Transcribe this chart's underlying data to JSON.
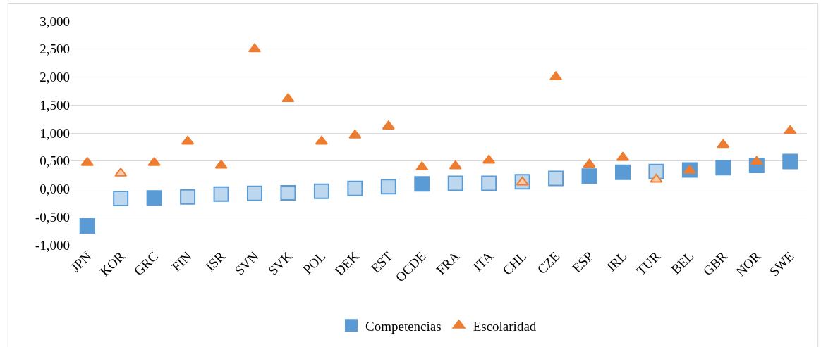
{
  "chart_data": {
    "type": "scatter",
    "categories": [
      "JPN",
      "KOR",
      "GRC",
      "FIN",
      "ISR",
      "SVN",
      "SVK",
      "POL",
      "DEK",
      "EST",
      "OCDE",
      "FRA",
      "ITA",
      "CHL",
      "CZE",
      "ESP",
      "IRL",
      "TUR",
      "BEL",
      "GBR",
      "NOR",
      "SWE"
    ],
    "series": [
      {
        "name": "Competencias",
        "color": "#5b9bd5",
        "marker": "square",
        "values": [
          -0.66,
          -0.17,
          -0.16,
          -0.14,
          -0.09,
          -0.08,
          -0.07,
          -0.04,
          0.01,
          0.04,
          0.09,
          0.1,
          0.1,
          0.13,
          0.19,
          0.23,
          0.3,
          0.31,
          0.34,
          0.38,
          0.42,
          0.49
        ],
        "colors": [
          "#5b9bd5",
          "#bdd7ee",
          "#5b9bd5",
          "#bdd7ee",
          "#bdd7ee",
          "#bdd7ee",
          "#bdd7ee",
          "#bdd7ee",
          "#bdd7ee",
          "#bdd7ee",
          "#5b9bd5",
          "#bdd7ee",
          "#bdd7ee",
          "#bdd7ee",
          "#bdd7ee",
          "#5b9bd5",
          "#5b9bd5",
          "#bdd7ee",
          "#5b9bd5",
          "#5b9bd5",
          "#5b9bd5",
          "#5b9bd5"
        ]
      },
      {
        "name": "Escolaridad",
        "color": "#ed7d31",
        "marker": "triangle",
        "values": [
          0.47,
          0.28,
          0.47,
          0.85,
          0.42,
          2.5,
          1.61,
          0.85,
          0.96,
          1.12,
          0.39,
          0.41,
          0.51,
          0.12,
          2.0,
          0.44,
          0.56,
          0.17,
          0.33,
          0.79,
          0.49,
          1.04
        ],
        "colors": [
          "#ed7d31",
          "#f8cbad",
          "#ed7d31",
          "#ed7d31",
          "#ed7d31",
          "#ed7d31",
          "#ed7d31",
          "#ed7d31",
          "#ed7d31",
          "#ed7d31",
          "#ed7d31",
          "#ed7d31",
          "#ed7d31",
          "#f8cbad",
          "#ed7d31",
          "#ed7d31",
          "#ed7d31",
          "#f8cbad",
          "#ed7d31",
          "#ed7d31",
          "#ed7d31",
          "#ed7d31"
        ]
      }
    ],
    "ylim": [
      -1.0,
      3.0
    ],
    "yticks": [
      {
        "value": -1.0,
        "label": "-1,000"
      },
      {
        "value": -0.5,
        "label": "-0,500"
      },
      {
        "value": 0,
        "label": "0,000"
      },
      {
        "value": 0.5,
        "label": "0,500"
      },
      {
        "value": 1.0,
        "label": "1,000"
      },
      {
        "value": 1.5,
        "label": "1,500"
      },
      {
        "value": 2.0,
        "label": "2,000"
      },
      {
        "value": 2.5,
        "label": "2,500"
      },
      {
        "value": 3.0,
        "label": "3,000"
      }
    ],
    "grid": "y",
    "legend": "bottom"
  }
}
